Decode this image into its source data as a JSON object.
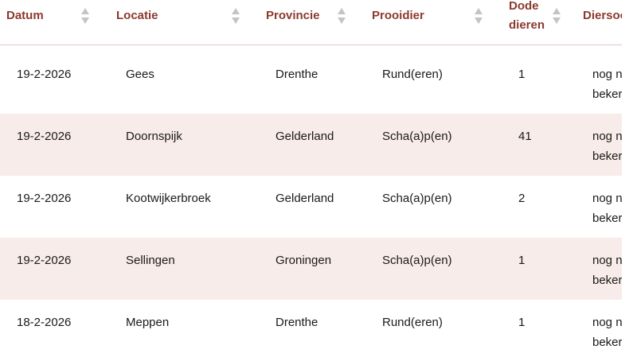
{
  "columns": {
    "datum": "Datum",
    "locatie": "Locatie",
    "provincie": "Provincie",
    "prooidier": "Prooidier",
    "dode_dieren_line1": "Dode",
    "dode_dieren_line2": "dieren",
    "diersoort": "Diersoo"
  },
  "rows": [
    {
      "datum": "19-2-2026",
      "locatie": "Gees",
      "provincie": "Drenthe",
      "prooidier": "Rund(eren)",
      "dode": "1",
      "diersoort_line1": "nog n",
      "diersoort_line2": "beker"
    },
    {
      "datum": "19-2-2026",
      "locatie": "Doornspijk",
      "provincie": "Gelderland",
      "prooidier": "Scha(a)p(en)",
      "dode": "41",
      "diersoort_line1": "nog n",
      "diersoort_line2": "beker"
    },
    {
      "datum": "19-2-2026",
      "locatie": "Kootwijkerbroek",
      "provincie": "Gelderland",
      "prooidier": "Scha(a)p(en)",
      "dode": "2",
      "diersoort_line1": "nog n",
      "diersoort_line2": "beker"
    },
    {
      "datum": "19-2-2026",
      "locatie": "Sellingen",
      "provincie": "Groningen",
      "prooidier": "Scha(a)p(en)",
      "dode": "1",
      "diersoort_line1": "nog n",
      "diersoort_line2": "beker"
    },
    {
      "datum": "18-2-2026",
      "locatie": "Meppen",
      "provincie": "Drenthe",
      "prooidier": "Rund(eren)",
      "dode": "1",
      "diersoort_line1": "nog n",
      "diersoort_line2": "beker"
    }
  ],
  "colors": {
    "header_text": "#8b3a2e",
    "row_alt_bg": "#f8ecea",
    "sort_icon": "#c4c4c4"
  }
}
